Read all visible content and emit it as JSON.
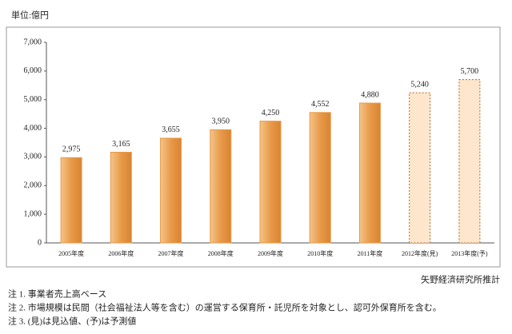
{
  "chart_data": {
    "type": "bar",
    "unit_label": "単位:億円",
    "categories": [
      "2005年度",
      "2006年度",
      "2007年度",
      "2008年度",
      "2009年度",
      "2010年度",
      "2011年度",
      "2012年度(見)",
      "2013年度(予)"
    ],
    "values": [
      2975,
      3165,
      3655,
      3950,
      4250,
      4552,
      4880,
      5240,
      5700
    ],
    "value_labels": [
      "2,975",
      "3,165",
      "3,655",
      "3,950",
      "4,250",
      "4,552",
      "4,880",
      "5,240",
      "5,700"
    ],
    "color": "#e89a48",
    "bar_styles": [
      "solid",
      "solid",
      "solid",
      "solid",
      "solid",
      "solid",
      "solid",
      "dashed",
      "dashed"
    ],
    "ylim": [
      0,
      7000
    ],
    "yticks": [
      0,
      {
        "value": 1000,
        "label": "1,000"
      },
      {
        "value": 2000,
        "label": "2,000"
      },
      {
        "value": 3000,
        "label": "3,000"
      },
      {
        "value": 4000,
        "label": "4,000"
      },
      {
        "value": 5000,
        "label": "5,000"
      },
      {
        "value": 6000,
        "label": "6,000"
      },
      {
        "value": 7000,
        "label": "7,000"
      }
    ],
    "grid": false,
    "source": "矢野経済研究所推計",
    "notes": [
      "注 1. 事業者売上高ベース",
      "注 2. 市場規模は民間（社会福祉法人等を含む）の運営する保育所・託児所を対象とし、認可外保育所を含む。",
      "注 3. (見)は見込値、(予)は予測値"
    ]
  }
}
